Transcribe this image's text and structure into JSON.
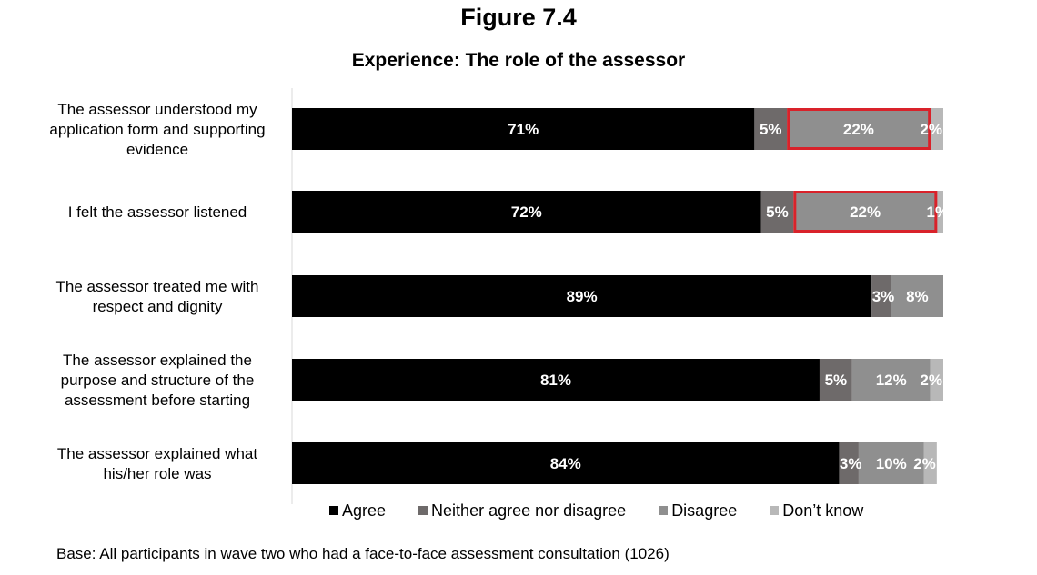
{
  "figure_label": "Figure 7.4",
  "chart_data": {
    "type": "bar",
    "orientation": "horizontal",
    "stacked": true,
    "title": "Experience: The role of the assessor",
    "categories": [
      "The assessor understood my application form and supporting evidence",
      "I felt the assessor listened",
      "The assessor treated me with respect and dignity",
      "The assessor explained the purpose and structure of the assessment before starting",
      "The assessor explained what his/her role was"
    ],
    "category_lines": [
      [
        "The assessor understood my",
        "application form and supporting",
        "evidence"
      ],
      [
        "I felt the assessor listened"
      ],
      [
        "The assessor treated me with",
        "respect and dignity"
      ],
      [
        "The assessor explained the",
        "purpose and structure of the",
        "assessment before starting"
      ],
      [
        "The assessor explained what",
        "his/her role was"
      ]
    ],
    "series": [
      {
        "name": "Agree",
        "color": "#000000",
        "values": [
          71,
          72,
          89,
          81,
          84
        ],
        "labels": [
          "71%",
          "72%",
          "89%",
          "81%",
          "84%"
        ]
      },
      {
        "name": "Neither agree nor disagree",
        "color": "#6e6a6a",
        "values": [
          5,
          5,
          3,
          5,
          3
        ],
        "labels": [
          "5%",
          "5%",
          "3%",
          "5%",
          "3%"
        ]
      },
      {
        "name": "Disagree",
        "color": "#8f8f8f",
        "values": [
          22,
          22,
          8,
          12,
          10
        ],
        "labels": [
          "22%",
          "22%",
          "8%",
          "12%",
          "10%"
        ]
      },
      {
        "name": "Don’t know",
        "color": "#b8b8b8",
        "values": [
          2,
          1,
          0,
          2,
          2
        ],
        "labels": [
          "2%",
          "1%",
          "",
          "2%",
          "2%"
        ]
      }
    ],
    "xlim": [
      0,
      100
    ],
    "legend_position": "bottom",
    "grid": false,
    "highlight_color": "#d9222a",
    "highlighted_categories": [
      0,
      1
    ]
  },
  "base_note": "Base: All participants in wave two who had a face-to-face assessment consultation (1026)"
}
